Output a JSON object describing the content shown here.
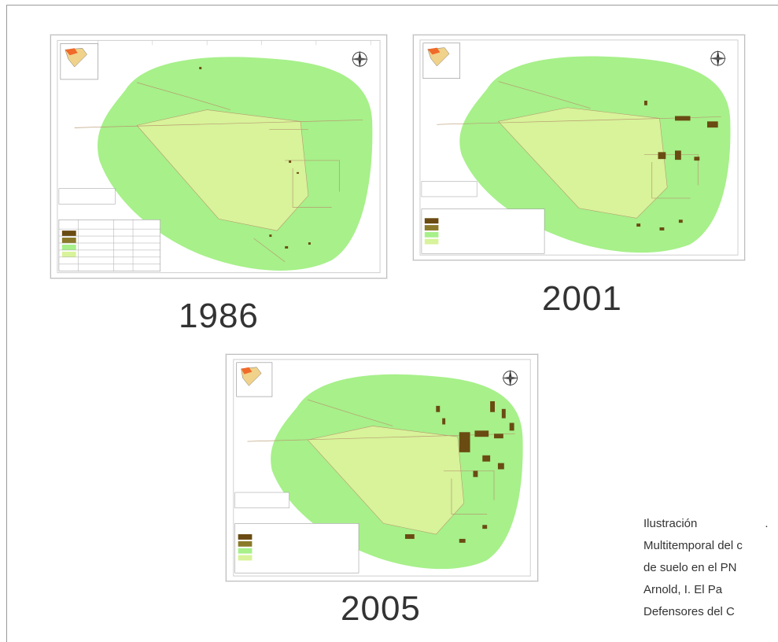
{
  "figures": [
    {
      "year": "1986"
    },
    {
      "year": "2001"
    },
    {
      "year": "2005"
    }
  ],
  "caption": {
    "line1_a": "Ilustración",
    "line1_b": ".",
    "line2": "Multitemporal del c",
    "line3": "de suelo en el PN",
    "line4": "Arnold, I.  El Pa",
    "line5": "Defensores del C"
  },
  "colors": {
    "reserve_green": "#a7f08a",
    "inner_zone": "#d8f39a",
    "deforested": "#6a4b12",
    "roads": "#b89a70"
  }
}
